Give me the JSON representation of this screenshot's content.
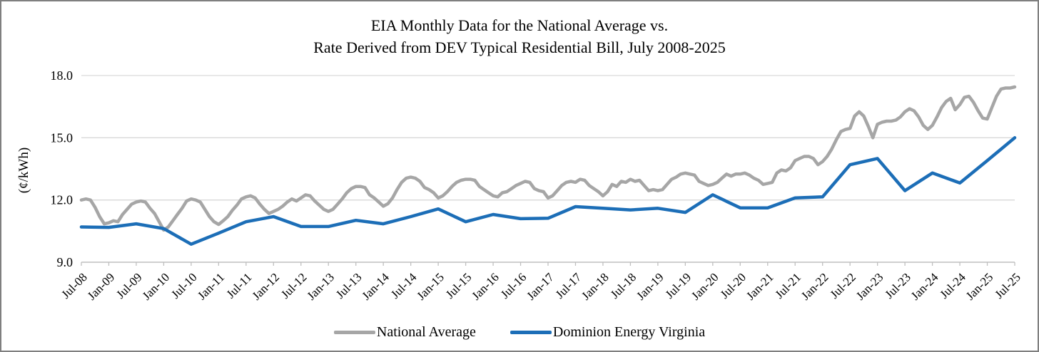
{
  "title_line1": "EIA Monthly Data for the National Average  vs.",
  "title_line2": "Rate Derived from DEV Typical Residential Bill, July 2008-2025",
  "y_axis": {
    "label": "(¢/kWh)",
    "tick_labels": [
      "9.0",
      "12.0",
      "15.0",
      "18.0"
    ]
  },
  "colors": {
    "national_average": "#a6a6a6",
    "dominion": "#1c6eb7",
    "gridline": "#d9d9d9",
    "axis": "#bfbfbf",
    "text": "#000000",
    "border": "#7f7f7f"
  },
  "chart_data": {
    "type": "line",
    "title": "EIA Monthly Data for the National Average vs. Rate Derived from DEV Typical Residential Bill, July 2008-2025",
    "xlabel": "",
    "ylabel": "(¢/kWh)",
    "ylim": [
      9.0,
      18.0
    ],
    "yticks": [
      9.0,
      12.0,
      15.0,
      18.0
    ],
    "grid": "horizontal",
    "legend_position": "bottom-center",
    "x_range": "monthly, Jul-2008 through Jul-2025 (205 months)",
    "x_tick_labels": [
      "Jul-08",
      "Jan-09",
      "Jul-09",
      "Jan-10",
      "Jul-10",
      "Jan-11",
      "Jul-11",
      "Jan-12",
      "Jul-12",
      "Jan-13",
      "Jul-13",
      "Jan-14",
      "Jul-14",
      "Jan-15",
      "Jul-15",
      "Jan-16",
      "Jul-16",
      "Jan-17",
      "Jul-17",
      "Jan-18",
      "Jul-18",
      "Jan-19",
      "Jul-19",
      "Jan-20",
      "Jul-20",
      "Jan-21",
      "Jul-21",
      "Jan-22",
      "Jul-22",
      "Jan-23",
      "Jul-23",
      "Jan-24",
      "Jul-24",
      "Jan-25",
      "Jul-25"
    ],
    "series": [
      {
        "name": "National Average",
        "color": "#a6a6a6",
        "sampling": "monthly",
        "values": [
          12.0,
          12.05,
          12.0,
          11.65,
          11.2,
          10.85,
          10.9,
          11.0,
          10.95,
          11.3,
          11.55,
          11.8,
          11.9,
          11.95,
          11.9,
          11.6,
          11.35,
          10.95,
          10.55,
          10.7,
          11.0,
          11.3,
          11.6,
          11.95,
          12.05,
          12.0,
          11.9,
          11.55,
          11.2,
          10.95,
          10.82,
          11.0,
          11.2,
          11.5,
          11.75,
          12.05,
          12.15,
          12.2,
          12.1,
          11.8,
          11.55,
          11.35,
          11.45,
          11.55,
          11.7,
          11.9,
          12.05,
          11.95,
          12.1,
          12.25,
          12.2,
          11.95,
          11.75,
          11.55,
          11.45,
          11.55,
          11.8,
          12.05,
          12.35,
          12.55,
          12.65,
          12.65,
          12.6,
          12.25,
          12.1,
          11.9,
          11.7,
          11.82,
          12.1,
          12.5,
          12.85,
          13.05,
          13.1,
          13.05,
          12.9,
          12.6,
          12.5,
          12.35,
          12.1,
          12.2,
          12.4,
          12.65,
          12.85,
          12.95,
          13.0,
          13.0,
          12.95,
          12.65,
          12.5,
          12.35,
          12.2,
          12.15,
          12.35,
          12.4,
          12.55,
          12.7,
          12.8,
          12.9,
          12.85,
          12.55,
          12.45,
          12.4,
          12.1,
          12.2,
          12.45,
          12.7,
          12.85,
          12.9,
          12.85,
          13.0,
          12.95,
          12.7,
          12.55,
          12.4,
          12.2,
          12.4,
          12.75,
          12.65,
          12.9,
          12.85,
          13.0,
          12.9,
          12.95,
          12.7,
          12.45,
          12.5,
          12.45,
          12.5,
          12.75,
          13.0,
          13.1,
          13.25,
          13.3,
          13.25,
          13.2,
          12.9,
          12.8,
          12.7,
          12.75,
          12.85,
          13.05,
          13.25,
          13.15,
          13.25,
          13.25,
          13.3,
          13.2,
          13.05,
          12.95,
          12.75,
          12.8,
          12.85,
          13.3,
          13.45,
          13.4,
          13.55,
          13.9,
          14.0,
          14.1,
          14.1,
          14.0,
          13.7,
          13.85,
          14.1,
          14.45,
          14.9,
          15.3,
          15.4,
          15.45,
          16.05,
          16.25,
          16.05,
          15.55,
          15.0,
          15.65,
          15.75,
          15.8,
          15.8,
          15.85,
          16.0,
          16.25,
          16.4,
          16.3,
          16.0,
          15.6,
          15.4,
          15.6,
          16.0,
          16.45,
          16.75,
          16.9,
          16.35,
          16.6,
          16.95,
          17.0,
          16.7,
          16.3,
          15.95,
          15.9,
          16.45,
          17.0,
          17.35,
          17.4,
          17.4,
          17.45
        ]
      },
      {
        "name": "Dominion Energy Virginia",
        "color": "#1c6eb7",
        "sampling": "semiannual (values at each x tick label)",
        "values": [
          10.7,
          10.68,
          10.85,
          10.62,
          9.87,
          10.4,
          10.95,
          11.2,
          10.72,
          10.72,
          11.02,
          10.85,
          11.2,
          11.57,
          10.95,
          11.3,
          11.1,
          11.12,
          11.68,
          11.6,
          11.52,
          11.6,
          11.4,
          12.25,
          11.62,
          11.62,
          12.1,
          12.15,
          13.7,
          14.0,
          12.45,
          13.3,
          12.82,
          13.9,
          15.0
        ]
      }
    ]
  }
}
